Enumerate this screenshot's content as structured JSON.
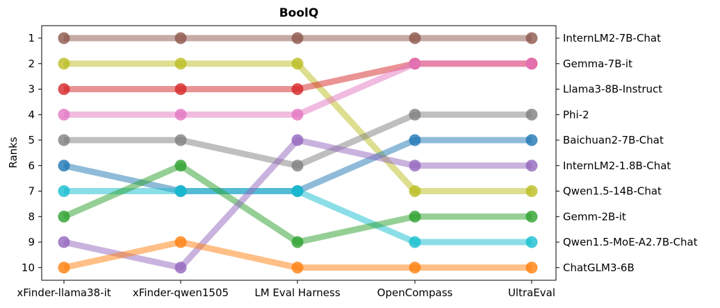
{
  "chart_data": {
    "type": "line",
    "title": "BoolQ",
    "xlabel": "",
    "ylabel": "Ranks",
    "categories": [
      "xFinder-llama38-it",
      "xFinder-qwen1505",
      "LM Eval Harness",
      "OpenCompass",
      "UltraEval"
    ],
    "ylim": [
      1,
      10
    ],
    "y_inverted": true,
    "y_ticks": [
      1,
      2,
      3,
      4,
      5,
      6,
      7,
      8,
      9,
      10
    ],
    "right_axis_labels": [
      "InternLM2-7B-Chat",
      "Gemma-7B-it",
      "Llama3-8B-Instruct",
      "Phi-2",
      "Baichuan2-7B-Chat",
      "InternLM2-1.8B-Chat",
      "Qwen1.5-14B-Chat",
      "Gemm-2B-it",
      "Qwen1.5-MoE-A2.7B-Chat",
      "ChatGLM3-6B"
    ],
    "grid": false,
    "legend": "none",
    "series": [
      {
        "name": "InternLM2-7B-Chat",
        "color": "#8c564b",
        "values": [
          1,
          1,
          1,
          1,
          1
        ]
      },
      {
        "name": "Gemma-7B-it",
        "color": "#bcbd22",
        "values": [
          2,
          2,
          2,
          7,
          7
        ]
      },
      {
        "name": "Llama3-8B-Instruct",
        "color": "#d62728",
        "values": [
          3,
          3,
          3,
          2,
          2
        ]
      },
      {
        "name": "Phi-2",
        "color": "#e377c2",
        "values": [
          4,
          4,
          4,
          2,
          2
        ]
      },
      {
        "name": "Baichuan2-7B-Chat",
        "color": "#7f7f7f",
        "values": [
          5,
          5,
          6,
          4,
          4
        ]
      },
      {
        "name": "InternLM2-1.8B-Chat",
        "color": "#1f77b4",
        "values": [
          6,
          7,
          7,
          5,
          5
        ]
      },
      {
        "name": "Qwen1.5-14B-Chat",
        "color": "#17becf",
        "values": [
          7,
          7,
          7,
          9,
          9
        ]
      },
      {
        "name": "Gemm-2B-it",
        "color": "#2ca02c",
        "values": [
          8,
          6,
          9,
          8,
          8
        ]
      },
      {
        "name": "Qwen1.5-MoE-A2.7B-Chat",
        "color": "#9467bd",
        "values": [
          9,
          10,
          5,
          6,
          6
        ]
      },
      {
        "name": "ChatGLM3-6B",
        "color": "#ff7f0e",
        "values": [
          10,
          9,
          10,
          10,
          10
        ]
      }
    ]
  }
}
